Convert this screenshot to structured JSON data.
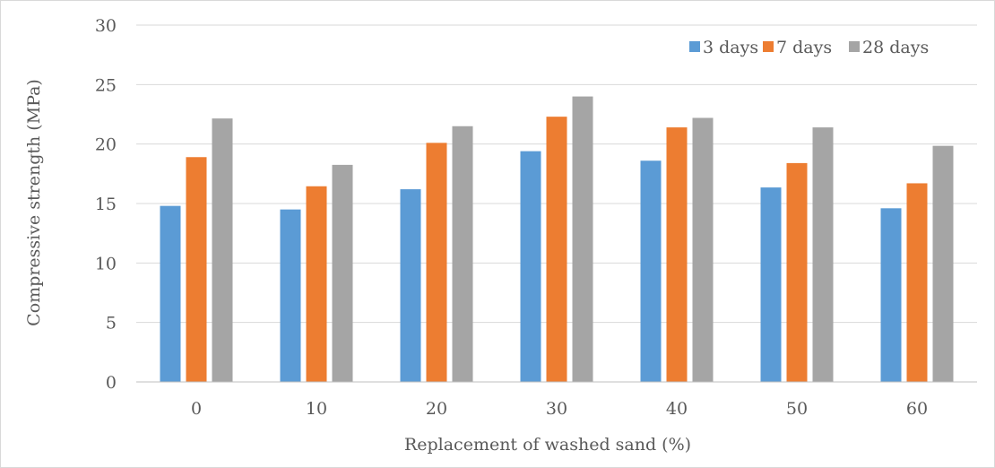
{
  "chart_data": {
    "type": "bar",
    "title": "",
    "xlabel": "Replacement of washed sand (%)",
    "ylabel": "Compressive strength (MPa)",
    "categories": [
      "0",
      "10",
      "20",
      "30",
      "40",
      "50",
      "60"
    ],
    "ylim": [
      0,
      30
    ],
    "yticks": [
      "0",
      "5",
      "10",
      "15",
      "20",
      "25",
      "30"
    ],
    "grid": true,
    "legend_position": "top-right",
    "series": [
      {
        "name": "3 days",
        "color": "#5b9bd5",
        "values": [
          14.8,
          14.5,
          16.2,
          19.4,
          18.6,
          16.35,
          14.6
        ]
      },
      {
        "name": "7 days",
        "color": "#ed7d31",
        "values": [
          18.9,
          16.45,
          20.1,
          22.3,
          21.4,
          18.4,
          16.7
        ]
      },
      {
        "name": "28 days",
        "color": "#a5a5a5",
        "values": [
          22.15,
          18.25,
          21.5,
          24.0,
          22.2,
          21.4,
          19.85
        ]
      }
    ]
  }
}
